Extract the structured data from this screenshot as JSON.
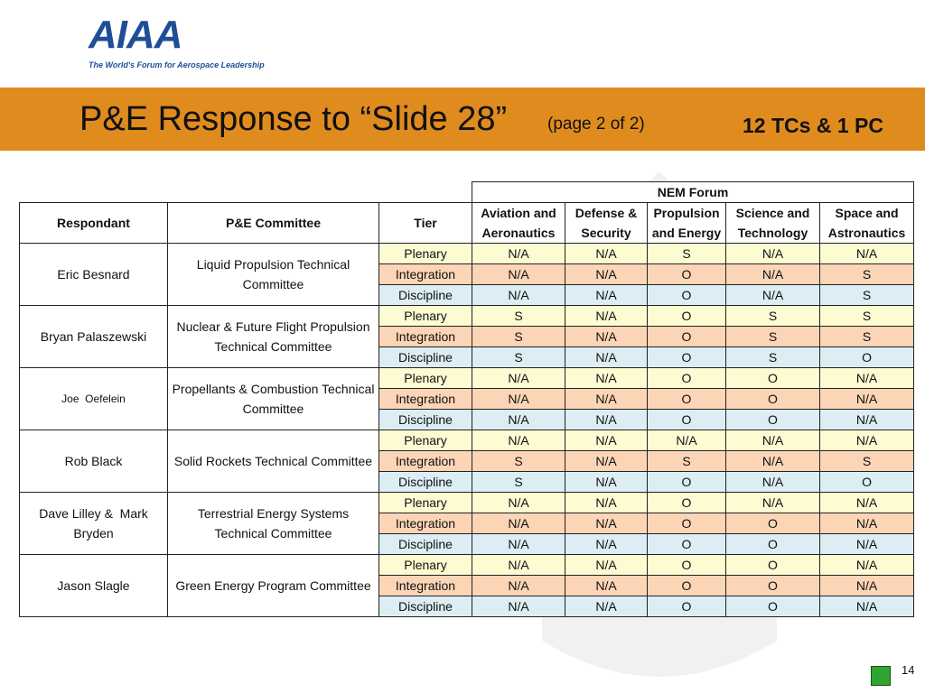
{
  "logo": {
    "name": "AIAA",
    "tagline": "The World's Forum for Aerospace Leadership"
  },
  "header": {
    "title": "P&E Response to “Slide 28”",
    "subtitle": "(page 2 of 2)",
    "note": "12 TCs & 1 PC"
  },
  "table": {
    "group_header": "NEM Forum",
    "columns": [
      "Respondant",
      "P&E Committee",
      "Tier",
      "Aviation and Aeronautics",
      "Defense & Security",
      "Propulsion and Energy",
      "Science and Technology",
      "Space and Astronautics"
    ],
    "groups": [
      {
        "respondent": "Eric Besnard",
        "committee": "Liquid Propulsion Technical Committee",
        "rows": [
          {
            "tier": "Plenary",
            "values": [
              "N/A",
              "N/A",
              "S",
              "N/A",
              "N/A"
            ]
          },
          {
            "tier": "Integration",
            "values": [
              "N/A",
              "N/A",
              "O",
              "N/A",
              "S"
            ]
          },
          {
            "tier": "Discipline",
            "values": [
              "N/A",
              "N/A",
              "O",
              "N/A",
              "S"
            ]
          }
        ]
      },
      {
        "respondent": "Bryan Palaszewski",
        "committee": "Nuclear & Future Flight Propulsion Technical Committee",
        "rows": [
          {
            "tier": "Plenary",
            "values": [
              "S",
              "N/A",
              "O",
              "S",
              "S"
            ]
          },
          {
            "tier": "Integration",
            "values": [
              "S",
              "N/A",
              "O",
              "S",
              "S"
            ]
          },
          {
            "tier": "Discipline",
            "values": [
              "S",
              "N/A",
              "O",
              "S",
              "O"
            ]
          }
        ]
      },
      {
        "respondent": "Joe  Oefelein",
        "committee": "Propellants & Combustion Technical Committee",
        "rows": [
          {
            "tier": "Plenary",
            "values": [
              "N/A",
              "N/A",
              "O",
              "O",
              "N/A"
            ]
          },
          {
            "tier": "Integration",
            "values": [
              "N/A",
              "N/A",
              "O",
              "O",
              "N/A"
            ]
          },
          {
            "tier": "Discipline",
            "values": [
              "N/A",
              "N/A",
              "O",
              "O",
              "N/A"
            ]
          }
        ]
      },
      {
        "respondent": "Rob Black",
        "committee": "Solid Rockets Technical Committee",
        "rows": [
          {
            "tier": "Plenary",
            "values": [
              "N/A",
              "N/A",
              "N/A",
              "N/A",
              "N/A"
            ]
          },
          {
            "tier": "Integration",
            "values": [
              "S",
              "N/A",
              "S",
              "N/A",
              "S"
            ]
          },
          {
            "tier": "Discipline",
            "values": [
              "S",
              "N/A",
              "O",
              "N/A",
              "O"
            ]
          }
        ]
      },
      {
        "respondent": "Dave Lilley &  Mark Bryden",
        "committee": "Terrestrial Energy Systems Technical Committee",
        "rows": [
          {
            "tier": "Plenary",
            "values": [
              "N/A",
              "N/A",
              "O",
              "N/A",
              "N/A"
            ]
          },
          {
            "tier": "Integration",
            "values": [
              "N/A",
              "N/A",
              "O",
              "O",
              "N/A"
            ]
          },
          {
            "tier": "Discipline",
            "values": [
              "N/A",
              "N/A",
              "O",
              "O",
              "N/A"
            ]
          }
        ]
      },
      {
        "respondent": "Jason Slagle",
        "committee": "Green Energy Program Committee",
        "rows": [
          {
            "tier": "Plenary",
            "values": [
              "N/A",
              "N/A",
              "O",
              "O",
              "N/A"
            ]
          },
          {
            "tier": "Integration",
            "values": [
              "N/A",
              "N/A",
              "O",
              "O",
              "N/A"
            ]
          },
          {
            "tier": "Discipline",
            "values": [
              "N/A",
              "N/A",
              "O",
              "O",
              "N/A"
            ]
          }
        ]
      }
    ]
  },
  "page_number": "14"
}
